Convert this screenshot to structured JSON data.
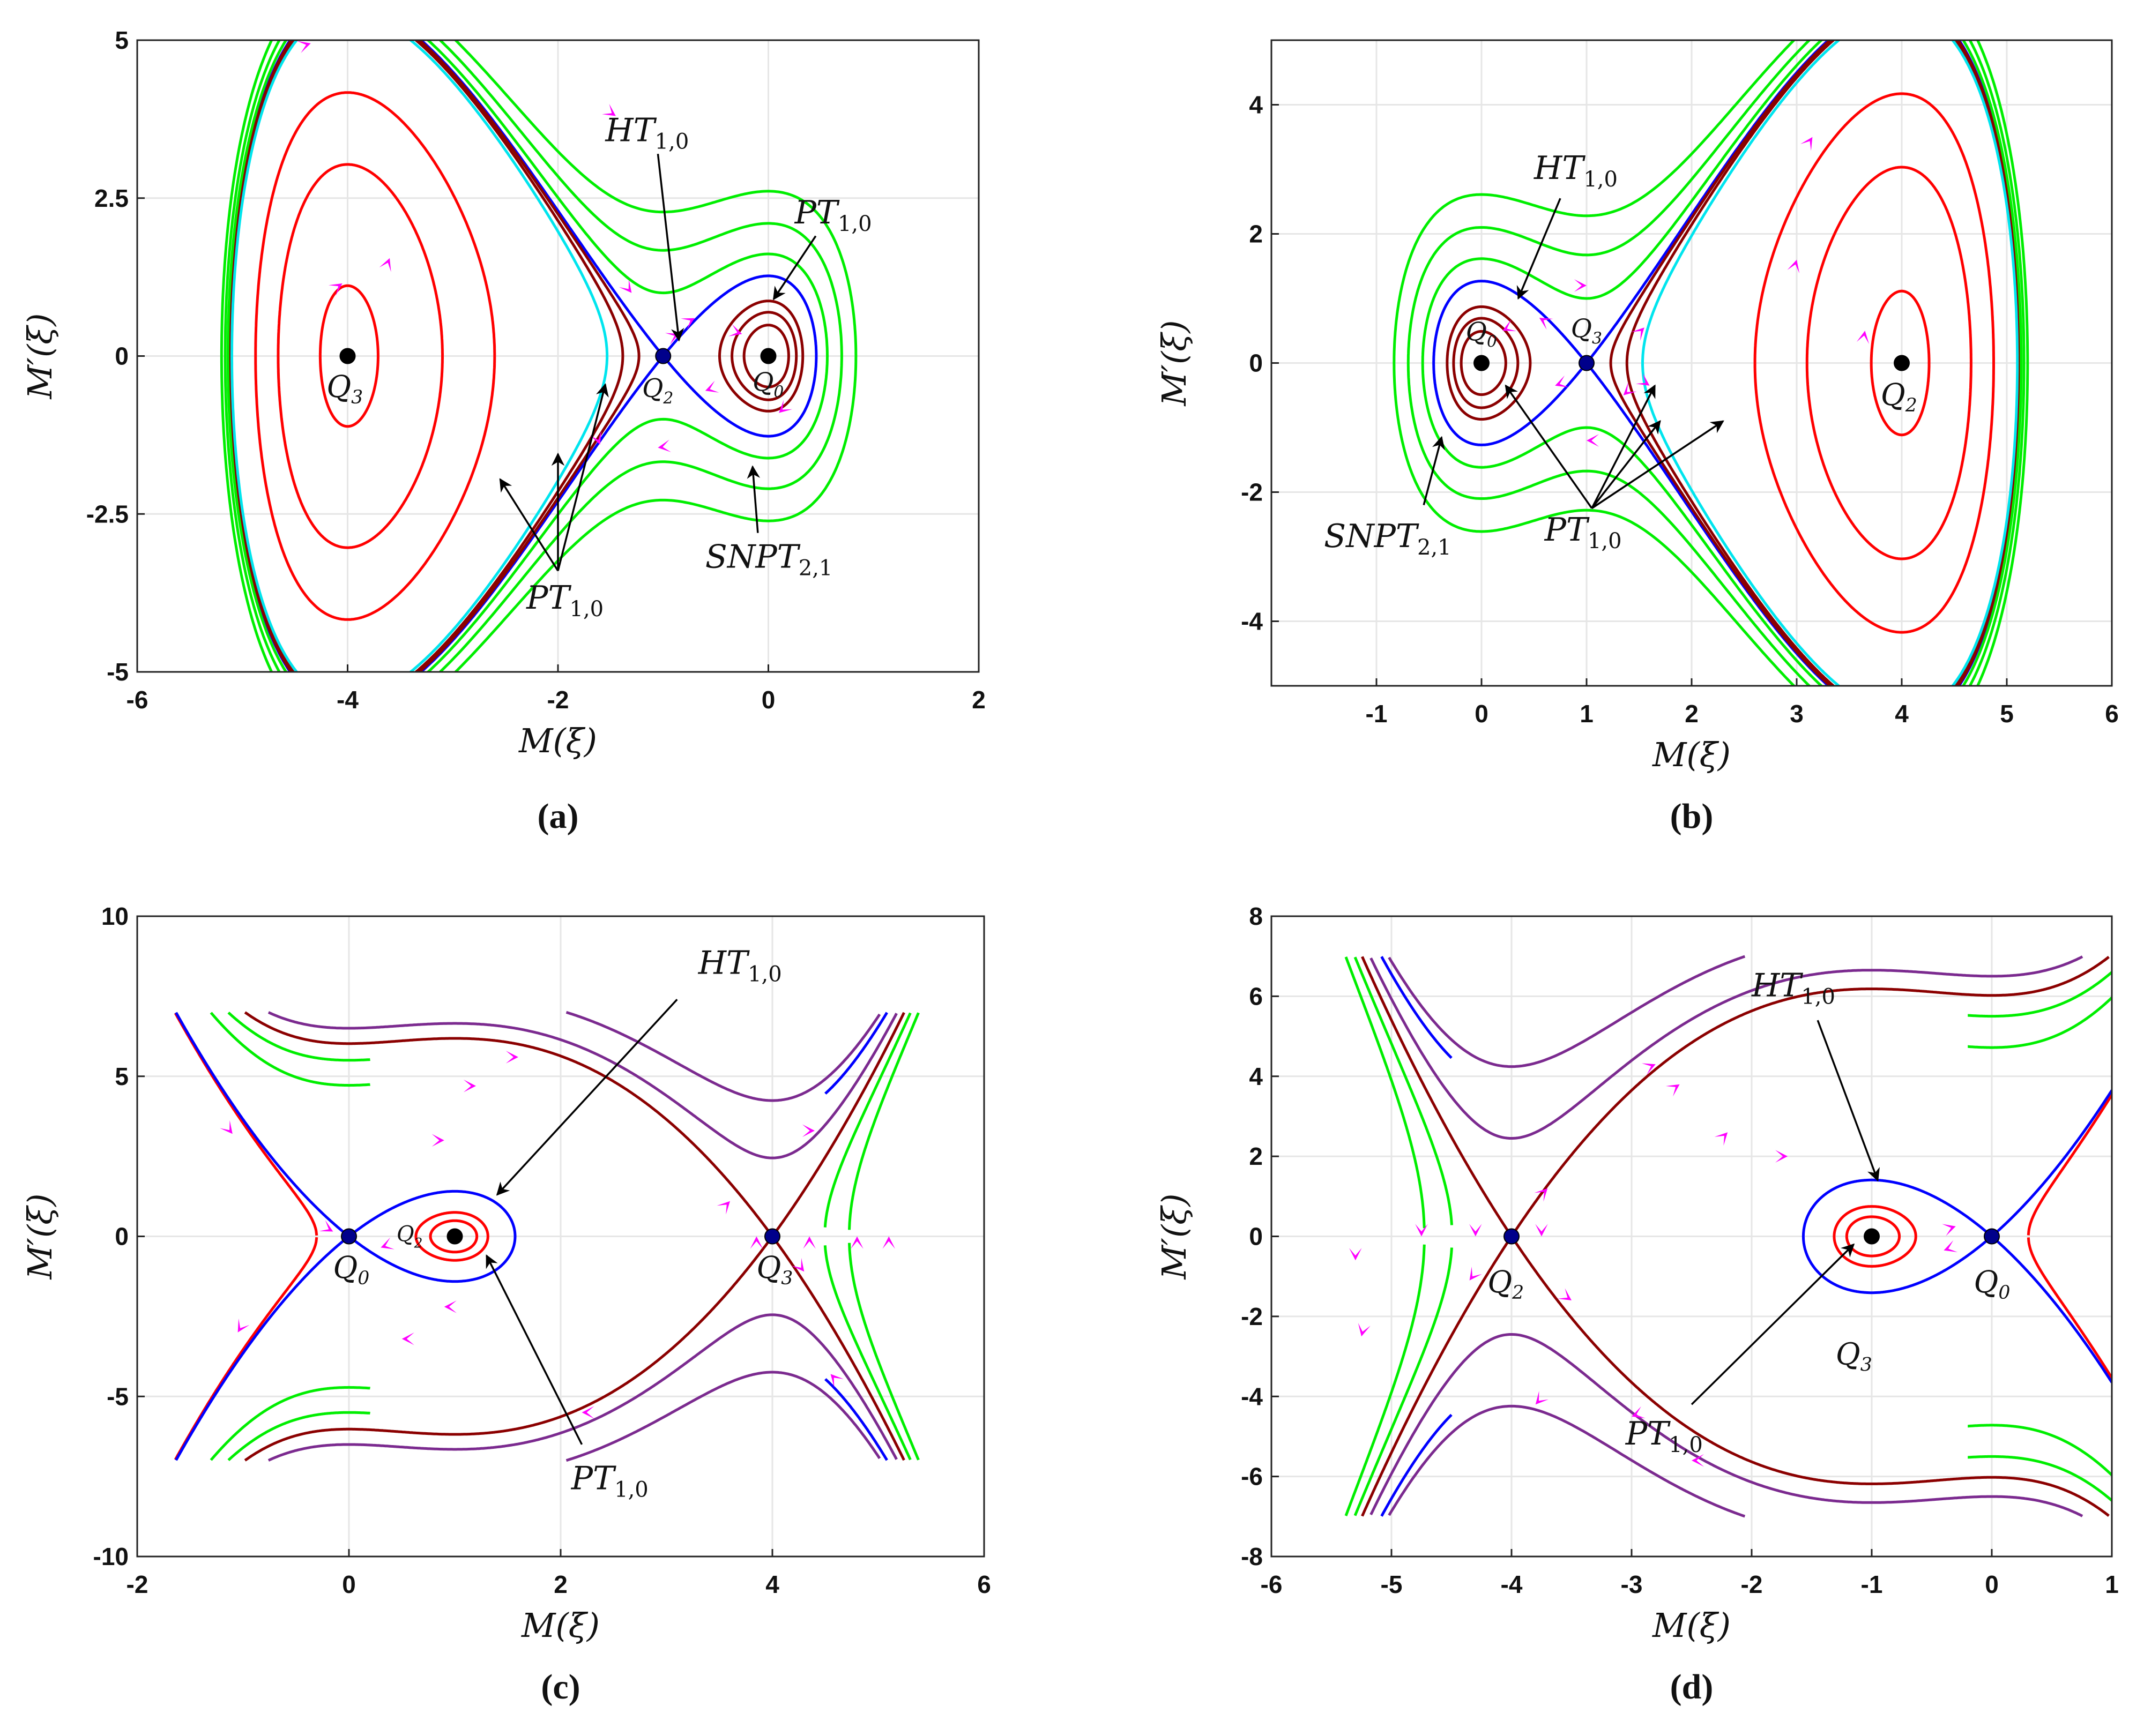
{
  "figure": {
    "description_type": "phase portraits of traveling wave system",
    "colors": {
      "periodic": "#ff0000",
      "inner_periodic": "#8b0000",
      "homoclinic": "#0000ff",
      "super_nonlinear": "#00ee00",
      "separatrix_cyan": "#00e5ee",
      "open_orbit": "#7b2a8f",
      "arrow": "#ff00ff",
      "grid": "#e6e6e6",
      "annotation": "#000000"
    }
  },
  "chart_data": [
    {
      "id": "a",
      "type": "line",
      "caption": "(a)",
      "xlabel": "M(ξ)",
      "ylabel": "M′(ξ)",
      "xlim": [
        -6,
        2
      ],
      "ylim": [
        -5,
        5
      ],
      "xticks": [
        "-6",
        "-4",
        "-2",
        "0",
        "2"
      ],
      "yticks": [
        "-5",
        "-2.5",
        "0",
        "2.5",
        "5"
      ],
      "equilibria": [
        {
          "label": "Q3",
          "x": -4,
          "y": 0,
          "kind": "center"
        },
        {
          "label": "Q2",
          "x": -1,
          "y": 0,
          "kind": "saddle"
        },
        {
          "label": "Q0",
          "x": 0,
          "y": 0,
          "kind": "center"
        }
      ],
      "annotations": [
        "HT1,0",
        "PT1,0",
        "PT1,0",
        "SNPT2,1"
      ]
    },
    {
      "id": "b",
      "type": "line",
      "caption": "(b)",
      "xlabel": "M(ξ)",
      "ylabel": "M′(ξ)",
      "xlim": [
        -2,
        6
      ],
      "ylim": [
        -5,
        5
      ],
      "xticks": [
        "-1",
        "0",
        "1",
        "2",
        "3",
        "4",
        "5",
        "6"
      ],
      "yticks": [
        "-4",
        "-2",
        "0",
        "2",
        "4"
      ],
      "equilibria": [
        {
          "label": "Q0",
          "x": 0,
          "y": 0,
          "kind": "center"
        },
        {
          "label": "Q3",
          "x": 1,
          "y": 0,
          "kind": "saddle"
        },
        {
          "label": "Q2",
          "x": 4,
          "y": 0,
          "kind": "center"
        }
      ],
      "annotations": [
        "HT1,0",
        "SNPT2,1",
        "PT1,0"
      ]
    },
    {
      "id": "c",
      "type": "line",
      "caption": "(c)",
      "xlabel": "M(ξ)",
      "ylabel": "M′(ξ)",
      "xlim": [
        -2,
        6
      ],
      "ylim": [
        -10,
        10
      ],
      "xticks": [
        "-2",
        "0",
        "2",
        "4",
        "6"
      ],
      "yticks": [
        "-10",
        "-5",
        "0",
        "5",
        "10"
      ],
      "equilibria": [
        {
          "label": "Q0",
          "x": 0,
          "y": 0,
          "kind": "saddle"
        },
        {
          "label": "Q2",
          "x": 1,
          "y": 0,
          "kind": "center"
        },
        {
          "label": "Q3",
          "x": 4,
          "y": 0,
          "kind": "saddle"
        }
      ],
      "annotations": [
        "HT1,0",
        "PT1,0"
      ]
    },
    {
      "id": "d",
      "type": "line",
      "caption": "(d)",
      "xlabel": "M(ξ)",
      "ylabel": "M′(ξ)",
      "xlim": [
        -6,
        1
      ],
      "ylim": [
        -8,
        8
      ],
      "xticks": [
        "-6",
        "-5",
        "-4",
        "-3",
        "-2",
        "-1",
        "0",
        "1"
      ],
      "yticks": [
        "-8",
        "-6",
        "-4",
        "-2",
        "0",
        "2",
        "4",
        "6",
        "8"
      ],
      "equilibria": [
        {
          "label": "Q2",
          "x": -4,
          "y": 0,
          "kind": "saddle"
        },
        {
          "label": "Q3",
          "x": -1,
          "y": 0,
          "kind": "center"
        },
        {
          "label": "Q0",
          "x": 0,
          "y": 0,
          "kind": "saddle"
        }
      ],
      "annotations": [
        "HT1,0",
        "PT1,0"
      ]
    }
  ]
}
